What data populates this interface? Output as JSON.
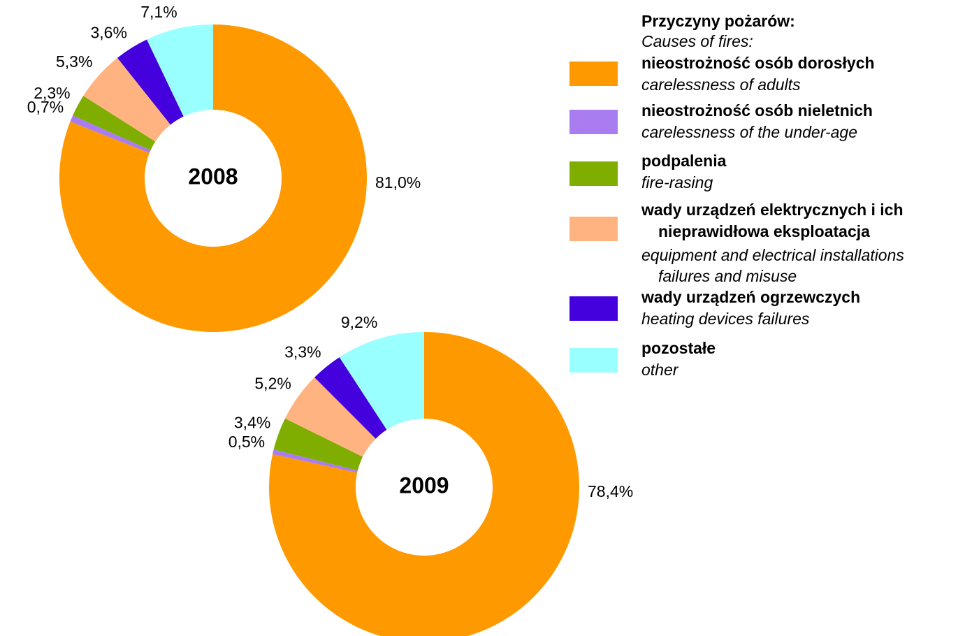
{
  "chart_data": [
    {
      "type": "donut",
      "center_label": "2008",
      "values": [
        81.0,
        0.7,
        2.3,
        5.3,
        3.6,
        7.1
      ],
      "value_labels": [
        "81,0%",
        "0,7%",
        "2,3%",
        "5,3%",
        "3,6%",
        "7,1%"
      ]
    },
    {
      "type": "donut",
      "center_label": "2009",
      "values": [
        78.4,
        0.5,
        3.4,
        5.2,
        3.3,
        9.2
      ],
      "value_labels": [
        "78,4%",
        "0,5%",
        "3,4%",
        "5,2%",
        "3,3%",
        "9,2%"
      ]
    }
  ],
  "legend": {
    "title": "Przyczyny pożarów:",
    "subtitle": "Causes of fires:",
    "items": [
      {
        "name": [
          "nieostrożność osób dorosłych"
        ],
        "name_en": [
          "carelessness of adults"
        ],
        "color": "#ff9900"
      },
      {
        "name": [
          "nieostrożność osób nieletnich"
        ],
        "name_en": [
          "carelessness of the under-age"
        ],
        "color": "#a97cf0"
      },
      {
        "name": [
          "podpalenia"
        ],
        "name_en": [
          "fire-rasing"
        ],
        "color": "#7fae00"
      },
      {
        "name": [
          "wady urządzeń elektrycznych i ich",
          "nieprawidłowa eksploatacja"
        ],
        "name_en": [
          "equipment and electrical installations",
          "failures and misuse"
        ],
        "color": "#ffb380"
      },
      {
        "name": [
          "wady urządzeń ogrzewczych"
        ],
        "name_en": [
          "heating devices failures"
        ],
        "color": "#4400dd"
      },
      {
        "name": [
          "pozostałe"
        ],
        "name_en": [
          "other"
        ],
        "color": "#99ffff"
      }
    ]
  }
}
